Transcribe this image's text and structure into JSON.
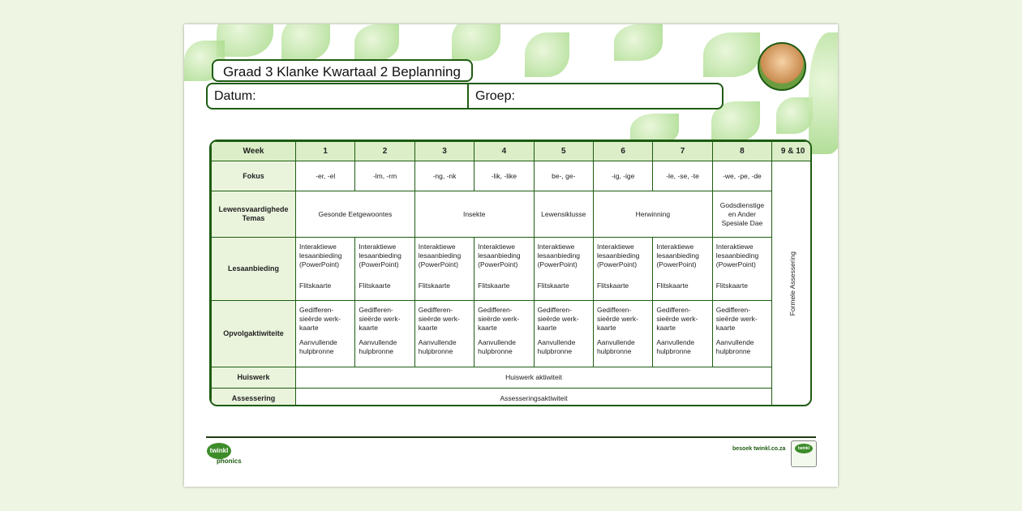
{
  "title": "Graad 3 Klanke Kwartaal 2 Beplanning",
  "info": {
    "datum": "Datum:",
    "groep": "Groep:"
  },
  "table": {
    "header": [
      "Week",
      "1",
      "2",
      "3",
      "4",
      "5",
      "6",
      "7",
      "8",
      "9 & 10"
    ],
    "rows": {
      "fokus": {
        "label": "Fokus",
        "cells": [
          "-er, -el",
          "-lm, -rm",
          "-ng, -nk",
          "-lik, -like",
          "be-, ge-",
          "-ig, -ige",
          "-le, -se, -te",
          "-we, -pe, -de"
        ]
      },
      "temas": {
        "label": "Lewensvaardighede Temas",
        "cells": [
          "Gesonde Eetgewoontes",
          "Insekte",
          "Lewensiklusse",
          "Herwinning",
          "Godsdienstige en Ander Spesiale Dae"
        ]
      },
      "lesaanbieding": {
        "label": "Lesaanbieding",
        "line1": "Interaktiewe lesaanbieding (PowerPoint)",
        "line2": "Flitskaarte"
      },
      "opvolg": {
        "label": "Opvolgaktiwiteite",
        "line1": "Gedifferen-sieërde werk-kaarte",
        "line2": "Aanvullende hulpbronne"
      },
      "huiswerk": {
        "label": "Huiswerk",
        "cell": "Huiswerk aktiwiteit"
      },
      "assessering": {
        "label": "Assessering",
        "cell": "Assesseringsaktiwiteit"
      }
    },
    "week910": "Formele Assessering"
  },
  "footer": {
    "logo": "twinkl",
    "logo_sub": "phonics",
    "site": "besoek twinkl.co.za",
    "badge": "twinkl"
  }
}
